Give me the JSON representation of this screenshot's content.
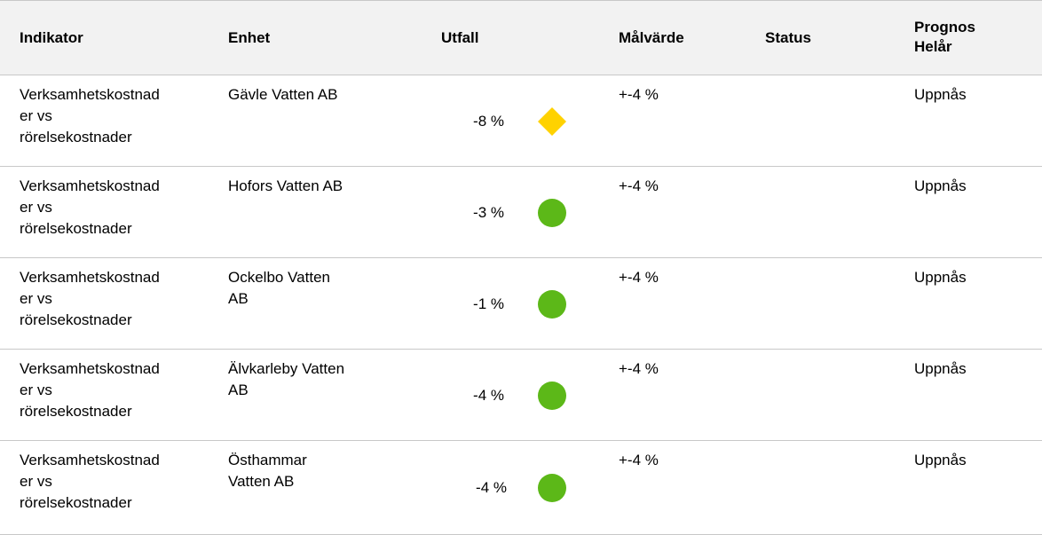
{
  "table": {
    "headers": [
      "Indikator",
      "Enhet",
      "Utfall",
      "Målvärde",
      "Status",
      "Prognos Helår"
    ],
    "rows": [
      {
        "indikator": "Verksamhetskostnader vs rörelsekostnader",
        "enhet": "Gävle Vatten AB",
        "utfall": "-8 %",
        "status_color": "#ffd200",
        "status_shape": "diamond",
        "malvarde": "+-4 %",
        "prognos": "Uppnås"
      },
      {
        "indikator": "Verksamhetskostnader vs rörelsekostnader",
        "enhet": "Hofors Vatten AB",
        "utfall": "-3 %",
        "status_color": "#5cb818",
        "status_shape": "circle",
        "malvarde": "+-4 %",
        "prognos": "Uppnås"
      },
      {
        "indikator": "Verksamhetskostnader vs rörelsekostnader",
        "enhet": "Ockelbo Vatten AB",
        "utfall": "-1 %",
        "status_color": "#5cb818",
        "status_shape": "circle",
        "malvarde": "+-4 %",
        "prognos": "Uppnås"
      },
      {
        "indikator": "Verksamhetskostnader vs rörelsekostnader",
        "enhet": "Älvkarleby Vatten AB",
        "utfall": "-4 %",
        "status_color": "#5cb818",
        "status_shape": "circle",
        "malvarde": "+-4 %",
        "prognos": "Uppnås"
      },
      {
        "indikator": "Verksamhetskostnader vs rörelsekostnader",
        "enhet": "Östhammar Vatten AB",
        "utfall": "-4 %",
        "status_color": "#5cb818",
        "status_shape": "circle",
        "malvarde": "+-4 %",
        "prognos": "Uppnås"
      }
    ]
  }
}
